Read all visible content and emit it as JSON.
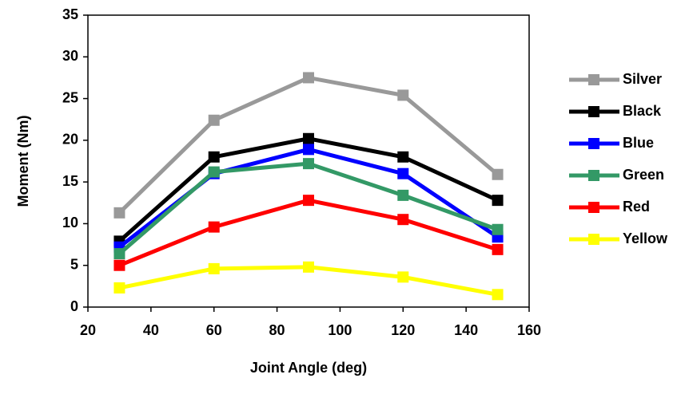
{
  "chart_data": {
    "type": "line",
    "x_label": "Joint Angle (deg)",
    "y_label": "Moment (Nm)",
    "x": [
      30,
      60,
      90,
      120,
      150
    ],
    "series": [
      {
        "name": "Silver",
        "color": "#999999",
        "values": [
          11.3,
          22.4,
          27.5,
          25.4,
          15.9
        ]
      },
      {
        "name": "Black",
        "color": "#000000",
        "values": [
          7.9,
          18.0,
          20.2,
          18.0,
          12.8
        ]
      },
      {
        "name": "Blue",
        "color": "#0000ff",
        "values": [
          7.2,
          16.0,
          18.9,
          16.0,
          8.4
        ]
      },
      {
        "name": "Green",
        "color": "#339966",
        "values": [
          6.4,
          16.2,
          17.2,
          13.4,
          9.3
        ]
      },
      {
        "name": "Red",
        "color": "#ff0000",
        "values": [
          5.0,
          9.6,
          12.8,
          10.5,
          6.9
        ]
      },
      {
        "name": "Yellow",
        "color": "#ffff00",
        "values": [
          2.3,
          4.6,
          4.8,
          3.6,
          1.5
        ]
      }
    ],
    "xlim": [
      20,
      160
    ],
    "xticks": [
      20,
      40,
      60,
      80,
      100,
      120,
      140,
      160
    ],
    "ylim": [
      0,
      35
    ],
    "yticks": [
      0,
      5,
      10,
      15,
      20,
      25,
      30,
      35
    ],
    "legend": "right",
    "grid": false
  }
}
